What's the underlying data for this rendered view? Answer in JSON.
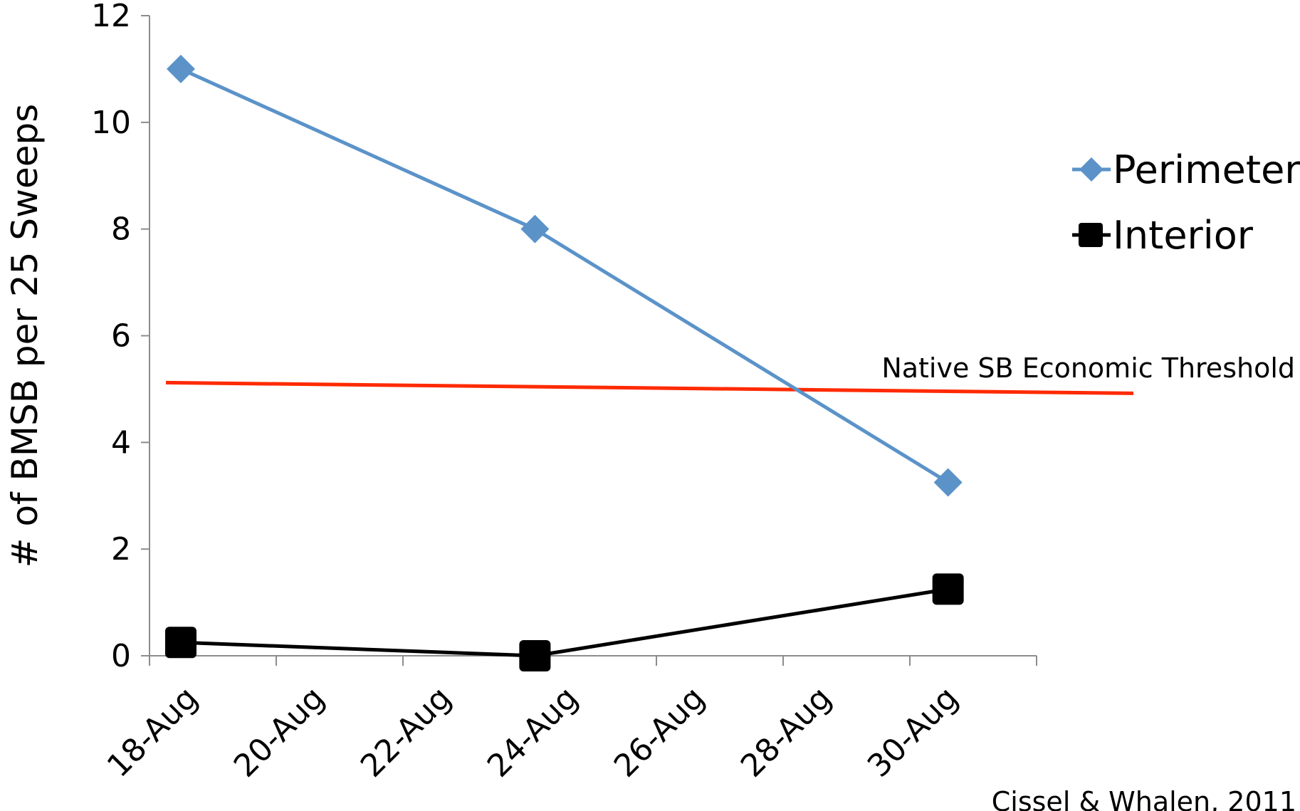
{
  "chart_data": {
    "type": "line",
    "title": "",
    "xlabel": "",
    "ylabel": "# of BMSB per 25 Sweeps",
    "ylim": [
      0,
      12
    ],
    "yticks": [
      0,
      2,
      4,
      6,
      8,
      10,
      12
    ],
    "xlim": [
      "18-Aug",
      "1-Sep"
    ],
    "xtick_labels": [
      "18-Aug",
      "20-Aug",
      "22-Aug",
      "24-Aug",
      "26-Aug",
      "28-Aug",
      "30-Aug"
    ],
    "grid": false,
    "legend_position": "right",
    "series": [
      {
        "name": "Perimeter",
        "color": "#5b93c9",
        "marker": "diamond",
        "points": [
          {
            "x": "18-Aug",
            "y": 11
          },
          {
            "x": "24-Aug",
            "y": 8
          },
          {
            "x": "31-Aug",
            "y": 3.25
          }
        ]
      },
      {
        "name": "Interior",
        "color": "#000000",
        "marker": "square",
        "points": [
          {
            "x": "18-Aug",
            "y": 0.25
          },
          {
            "x": "24-Aug",
            "y": 0
          },
          {
            "x": "31-Aug",
            "y": 1.25
          }
        ]
      }
    ],
    "threshold_line": {
      "label": "Native SB Economic Threshold",
      "color": "#ff2a00",
      "y_start": 5.12,
      "y_end": 4.92
    },
    "credit": "Cissel & Whalen, 2011"
  }
}
